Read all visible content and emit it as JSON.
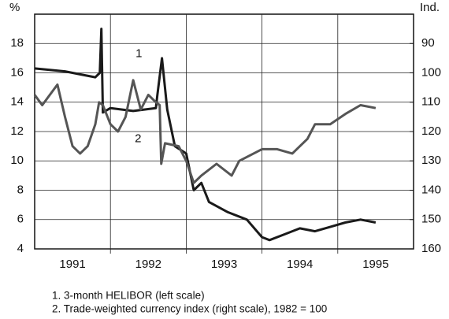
{
  "chart_data": {
    "type": "line",
    "y_label": "%",
    "y2_label": "Ind.",
    "xlim": [
      1991,
      1996
    ],
    "xticks": [
      {
        "value": 1991.5,
        "label": "1991"
      },
      {
        "value": 1992.5,
        "label": "1992"
      },
      {
        "value": 1993.5,
        "label": "1993"
      },
      {
        "value": 1994.5,
        "label": "1994"
      },
      {
        "value": 1995.5,
        "label": "1995"
      }
    ],
    "xgrid": [
      1992,
      1993,
      1994,
      1995
    ],
    "ylim": [
      4,
      20
    ],
    "yticks": [
      4,
      6,
      8,
      10,
      12,
      14,
      16,
      18
    ],
    "y2lim": [
      160,
      80
    ],
    "y2ticks": [
      90,
      100,
      110,
      120,
      130,
      140,
      150,
      160
    ],
    "grid": true,
    "series": [
      {
        "name": "1. 3-month HELIBOR (left scale)",
        "color": "#1a1a1a",
        "x": [
          1991.0,
          1991.4,
          1991.6,
          1991.8,
          1991.86,
          1991.88,
          1991.9,
          1992.0,
          1992.3,
          1992.6,
          1992.62,
          1992.68,
          1992.75,
          1992.85,
          1993.0,
          1993.1,
          1993.2,
          1993.3,
          1993.55,
          1993.8,
          1994.0,
          1994.1,
          1994.3,
          1994.5,
          1994.7,
          1994.9,
          1995.1,
          1995.3,
          1995.5
        ],
        "values": [
          16.3,
          16.1,
          15.9,
          15.7,
          16.0,
          19.0,
          13.3,
          13.6,
          13.4,
          13.6,
          14.5,
          17.0,
          13.5,
          11.0,
          10.5,
          8.0,
          8.5,
          7.2,
          6.5,
          6.0,
          4.8,
          4.6,
          5.0,
          5.4,
          5.2,
          5.5,
          5.8,
          6.0,
          5.8
        ]
      },
      {
        "name": "2. Trade-weighted currency index (right scale), 1982 = 100",
        "color": "#555555",
        "axis": "y2",
        "x": [
          1991.0,
          1991.1,
          1991.3,
          1991.4,
          1991.5,
          1991.6,
          1991.7,
          1991.8,
          1991.85,
          1991.9,
          1992.0,
          1992.1,
          1992.2,
          1992.3,
          1992.4,
          1992.5,
          1992.6,
          1992.65,
          1992.67,
          1992.72,
          1992.9,
          1993.0,
          1993.1,
          1993.2,
          1993.4,
          1993.6,
          1993.7,
          1994.0,
          1994.2,
          1994.4,
          1994.6,
          1994.7,
          1994.9,
          1995.1,
          1995.3,
          1995.5
        ],
        "values": [
          107.5,
          111,
          104,
          115,
          125,
          127.5,
          125,
          117.5,
          110,
          111,
          117.5,
          120,
          115,
          102.5,
          112.5,
          107.5,
          110,
          111,
          131,
          124,
          125,
          130,
          137.5,
          135,
          131,
          135,
          130,
          126,
          126,
          127.5,
          122.5,
          117.5,
          117.5,
          114,
          111,
          112
        ]
      }
    ],
    "annotations": [
      {
        "text": "1",
        "x": 1992.5,
        "y": 17.3
      },
      {
        "text": "2",
        "x": 1992.49,
        "y": 11.5
      }
    ]
  }
}
